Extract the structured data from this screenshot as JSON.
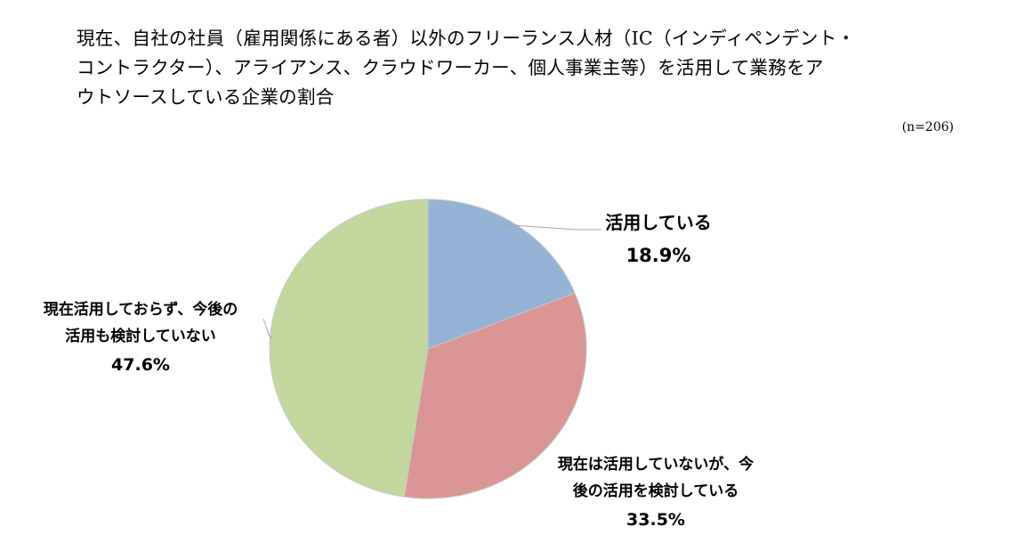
{
  "title_lines": [
    "現在、自社の社員（雇用関係にある者）以外のフリーランス人材（IC（インディペンデント・",
    "コントラクター）、アライアンス、クラウドワーカー、個人事業主等）を活用して業務をア",
    "ウトソースしている企業の割合"
  ],
  "sample_size": "(n=206)",
  "chart_data": {
    "type": "pie",
    "title": "現在、自社の社員（雇用関係にある者）以外のフリーランス人材（IC（インディペンデント・コントラクター）、アライアンス、クラウドワーカー、個人事業主等）を活用して業務をアウトソースしている企業の割合",
    "start_angle_deg": 0,
    "direction": "clockwise",
    "slices": [
      {
        "key": "using",
        "label_lines": [
          "活用している"
        ],
        "value": 18.9,
        "value_text": "18.9%",
        "color": "#95b3d7"
      },
      {
        "key": "considering",
        "label_lines": [
          "現在は活用していないが、今",
          "後の活用を検討している"
        ],
        "value": 33.5,
        "value_text": "33.5%",
        "color": "#d99694"
      },
      {
        "key": "not_using",
        "label_lines": [
          "現在活用しておらず、今後の",
          "活用も検討していない"
        ],
        "value": 47.6,
        "value_text": "47.6%",
        "color": "#c3d69b"
      }
    ],
    "legend": "none",
    "border_color": "#c8c8c8"
  }
}
